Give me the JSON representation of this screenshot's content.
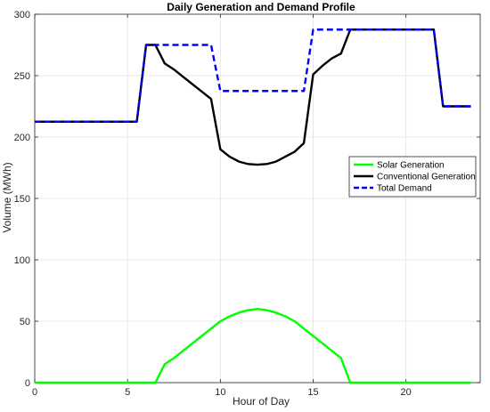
{
  "chart_data": {
    "type": "line",
    "title": "Daily Generation and Demand Profile",
    "xlabel": "Hour of Day",
    "ylabel": "Volume (MWh)",
    "xlim": [
      0,
      24
    ],
    "ylim": [
      0,
      300
    ],
    "xticks": [
      0,
      5,
      10,
      15,
      20
    ],
    "yticks": [
      0,
      50,
      100,
      150,
      200,
      250,
      300
    ],
    "grid": true,
    "legend_position": "right",
    "series": [
      {
        "name": "Solar Generation",
        "color": "#00ff00",
        "style": "solid",
        "x": [
          0,
          6.5,
          7,
          7.5,
          8,
          8.5,
          9,
          9.5,
          10,
          10.5,
          11,
          11.5,
          12,
          12.5,
          13,
          13.5,
          14,
          14.5,
          15,
          15.5,
          16,
          16.5,
          17,
          23.5
        ],
        "y": [
          0,
          0,
          15,
          20,
          26,
          32,
          38,
          44,
          50,
          54,
          57,
          59,
          60,
          59,
          57,
          54,
          50,
          44,
          38,
          32,
          26,
          20,
          0,
          0
        ]
      },
      {
        "name": "Conventional Generation",
        "color": "#000000",
        "style": "solid",
        "x": [
          0,
          5.5,
          6,
          6.5,
          7,
          7.5,
          8,
          8.5,
          9,
          9.5,
          10,
          10.5,
          11,
          11.5,
          12,
          12.5,
          13,
          13.5,
          14,
          14.5,
          15,
          15.5,
          16,
          16.5,
          17,
          17.5,
          18,
          18.5,
          19,
          19.5,
          20,
          20.5,
          21,
          21.5,
          22,
          23.5
        ],
        "y": [
          212.5,
          212.5,
          275,
          275,
          260,
          255,
          249,
          243,
          237,
          231,
          190,
          184,
          180,
          178,
          177.5,
          178,
          180,
          184,
          188,
          195,
          251,
          258,
          264,
          268,
          287.5,
          287.5,
          287.5,
          287.5,
          287.5,
          287.5,
          287.5,
          287.5,
          287.5,
          287.5,
          225,
          225
        ]
      },
      {
        "name": "Total Demand",
        "color": "#0000ff",
        "style": "dashed",
        "x": [
          0,
          5.5,
          6,
          9.5,
          10,
          14.5,
          15,
          21.5,
          22,
          23.5
        ],
        "y": [
          212.5,
          212.5,
          275,
          275,
          237.5,
          237.5,
          287.5,
          287.5,
          225,
          225
        ]
      }
    ]
  }
}
